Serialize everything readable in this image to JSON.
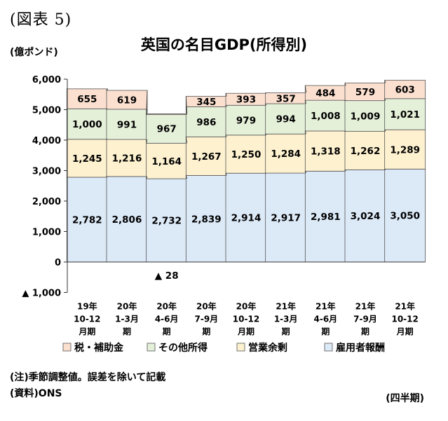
{
  "figure_label": "(図表 5)",
  "y_unit": "(億ポンド)",
  "note": "(注)季節調整値。誤差を除いて記載",
  "source": "(資料)ONS",
  "x_unit": "(四半期)",
  "chart_data": {
    "type": "bar",
    "stacked": true,
    "title": "英国の名目GDP(所得別)",
    "ylabel": "(億ポンド)",
    "xlabel": "(四半期)",
    "ylim": [
      -1000,
      6000
    ],
    "yticks": [
      -1000,
      0,
      1000,
      2000,
      3000,
      4000,
      5000,
      6000
    ],
    "ytick_labels": [
      "▲ 1,000",
      "0",
      "1,000",
      "2,000",
      "3,000",
      "4,000",
      "5,000",
      "6,000"
    ],
    "categories": [
      [
        "19年",
        "10-12",
        "月期"
      ],
      [
        "20年",
        "1-3月",
        "期"
      ],
      [
        "20年",
        "4-6月",
        "期"
      ],
      [
        "20年",
        "7-9月",
        "期"
      ],
      [
        "20年",
        "10-12",
        "月期"
      ],
      [
        "21年",
        "1-3月",
        "期"
      ],
      [
        "21年",
        "4-6月",
        "期"
      ],
      [
        "21年",
        "7-9月",
        "期"
      ],
      [
        "21年",
        "10-12",
        "月期"
      ]
    ],
    "series": [
      {
        "name": "雇用者報酬",
        "color": "#dce9f7",
        "values": [
          2782,
          2806,
          2732,
          2839,
          2914,
          2917,
          2981,
          3024,
          3050
        ],
        "labels": [
          "2,782",
          "2,806",
          "2,732",
          "2,839",
          "2,914",
          "2,917",
          "2,981",
          "3,024",
          "3,050"
        ]
      },
      {
        "name": "営業余剰",
        "color": "#fdf1cf",
        "values": [
          1245,
          1216,
          1164,
          1267,
          1250,
          1284,
          1318,
          1262,
          1289
        ],
        "labels": [
          "1,245",
          "1,216",
          "1,164",
          "1,267",
          "1,250",
          "1,284",
          "1,318",
          "1,262",
          "1,289"
        ]
      },
      {
        "name": "その他所得",
        "color": "#e5f0d9",
        "values": [
          1000,
          991,
          967,
          986,
          979,
          994,
          1008,
          1009,
          1021
        ],
        "labels": [
          "1,000",
          "991",
          "967",
          "986",
          "979",
          "994",
          "1,008",
          "1,009",
          "1,021"
        ]
      },
      {
        "name": "税・補助金",
        "color": "#fbe0d0",
        "values": [
          655,
          619,
          -28,
          345,
          393,
          357,
          484,
          579,
          603
        ],
        "labels": [
          "655",
          "619",
          "▲ 28",
          "345",
          "393",
          "357",
          "484",
          "579",
          "603"
        ]
      }
    ],
    "legend_order": [
      "税・補助金",
      "その他所得",
      "営業余剰",
      "雇用者報酬"
    ],
    "legend_position": "bottom",
    "grid": false,
    "connector_lines": true
  }
}
